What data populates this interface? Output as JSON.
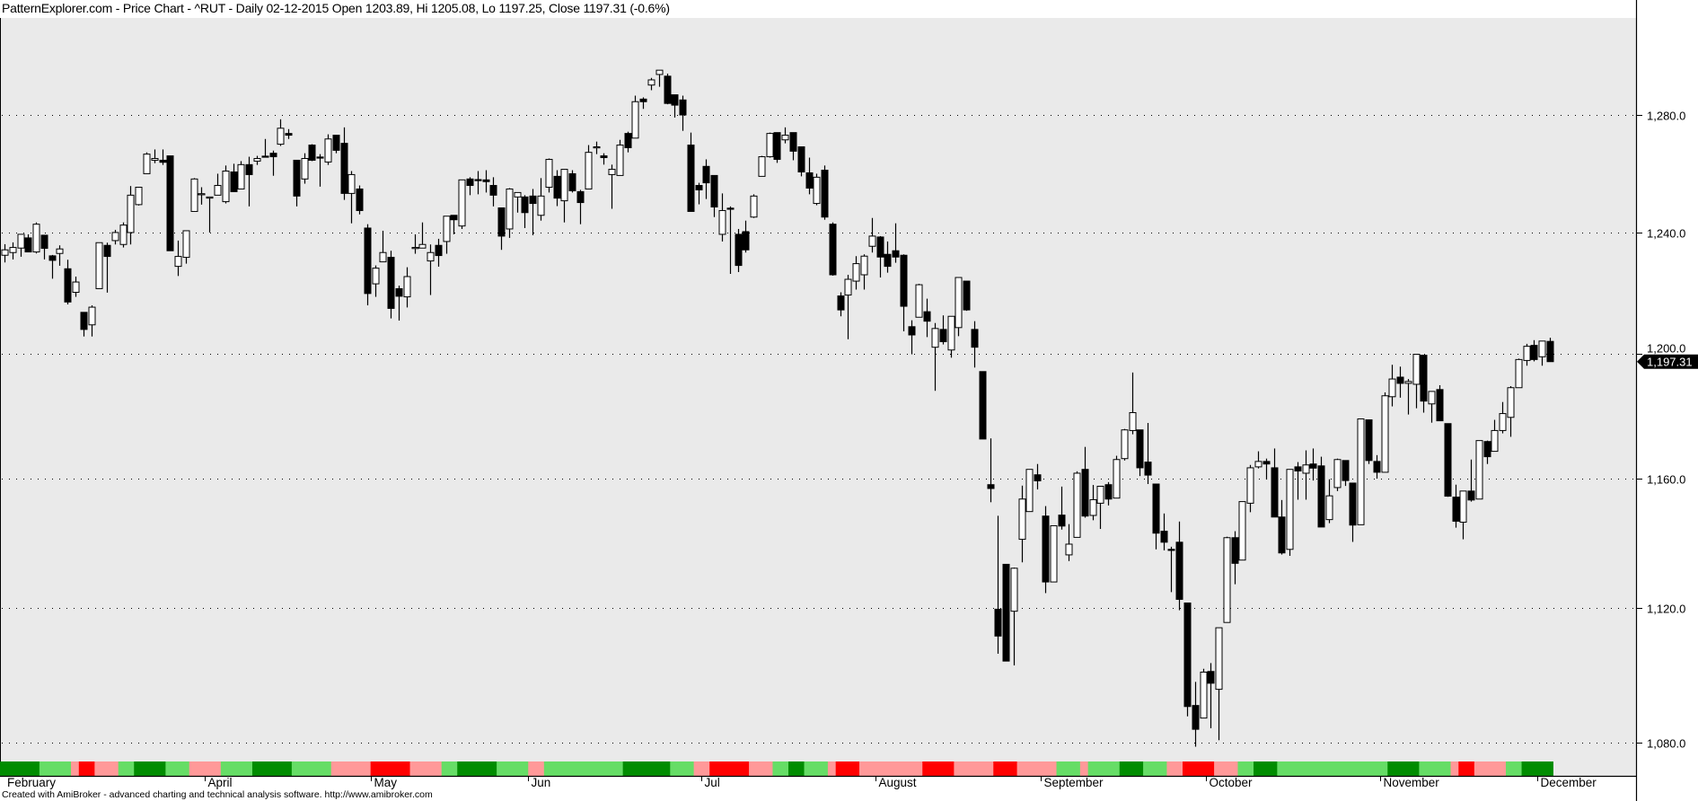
{
  "title": "PatternExplorer.com - Price Chart - ^RUT - Daily 02-12-2015 Open 1203.89, Hi 1205.08, Lo 1197.25, Close 1197.31 (-0.6%)",
  "footer": "Created with AmiBroker - advanced charting and technical analysis software. http://www.amibroker.com",
  "colors": {
    "background": "#EAEAEA",
    "up_body": "#FFFFFF",
    "down_body": "#000000",
    "band": {
      "D": "#008C00",
      "L": "#66DD66",
      "P": "#FF9999",
      "R": "#FF0000"
    }
  },
  "chart_data": {
    "type": "candlestick",
    "symbol": "^RUT",
    "interval": "Daily",
    "yscale": "log",
    "ylim": [
      1075,
      1314
    ],
    "grid": "horizontal dotted",
    "yticks": [
      1080,
      1120,
      1160,
      1200,
      1240,
      1280
    ],
    "ytick_labels": [
      "1,080.0",
      "1,120.0",
      "1,160.0",
      "1,200.0",
      "1,240.0",
      "1,280.0"
    ],
    "last_price": 1197.31,
    "last_price_label": "1,197.31",
    "months": [
      {
        "label": "February",
        "bar": 0
      },
      {
        "label": "April",
        "bar": 26
      },
      {
        "label": "May",
        "bar": 47
      },
      {
        "label": "Jun",
        "bar": 67
      },
      {
        "label": "Jul",
        "bar": 89
      },
      {
        "label": "August",
        "bar": 111
      },
      {
        "label": "September",
        "bar": 132
      },
      {
        "label": "October",
        "bar": 153
      },
      {
        "label": "November",
        "bar": 175
      },
      {
        "label": "December",
        "bar": 195
      }
    ],
    "ohlc_fields": [
      "open",
      "high",
      "low",
      "close"
    ],
    "ohlc": [
      [
        1232.3,
        1236.0,
        1229.9,
        1234.1
      ],
      [
        1233.2,
        1236.6,
        1230.9,
        1234.9
      ],
      [
        1234.7,
        1239.3,
        1231.8,
        1239.3
      ],
      [
        1238.1,
        1239.3,
        1233.4,
        1233.4
      ],
      [
        1233.4,
        1243.3,
        1232.9,
        1242.7
      ],
      [
        1239.0,
        1239.0,
        1230.9,
        1234.6
      ],
      [
        1232.1,
        1232.4,
        1224.5,
        1230.6
      ],
      [
        1232.9,
        1235.6,
        1228.8,
        1234.4
      ],
      [
        1227.8,
        1230.8,
        1216.0,
        1216.8
      ],
      [
        1220.0,
        1225.2,
        1218.5,
        1223.4
      ],
      [
        1213.4,
        1213.4,
        1205.5,
        1207.8
      ],
      [
        1209.3,
        1215.7,
        1205.5,
        1215.1
      ],
      [
        1221.2,
        1236.5,
        1221.2,
        1236.5
      ],
      [
        1235.6,
        1236.5,
        1219.9,
        1231.9
      ],
      [
        1237.2,
        1240.8,
        1235.9,
        1239.9
      ],
      [
        1235.9,
        1243.3,
        1234.9,
        1242.4
      ],
      [
        1239.9,
        1255.6,
        1235.9,
        1252.5
      ],
      [
        1249.3,
        1255.2,
        1249.0,
        1255.2
      ],
      [
        1259.8,
        1267.1,
        1259.8,
        1266.5
      ],
      [
        1264.4,
        1268.1,
        1263.4,
        1265.0
      ],
      [
        1264.4,
        1268.1,
        1262.8,
        1263.7
      ],
      [
        1265.9,
        1265.9,
        1233.8,
        1233.8
      ],
      [
        1228.6,
        1237.2,
        1225.4,
        1231.9
      ],
      [
        1231.6,
        1240.5,
        1229.5,
        1240.5
      ],
      [
        1247.0,
        1258.3,
        1247.0,
        1258.0
      ],
      [
        1253.0,
        1255.2,
        1249.3,
        1253.0
      ],
      [
        1251.5,
        1251.9,
        1239.9,
        1251.9
      ],
      [
        1252.5,
        1259.8,
        1252.5,
        1255.8
      ],
      [
        1250.3,
        1262.6,
        1249.7,
        1260.7
      ],
      [
        1260.4,
        1263.2,
        1253.7,
        1253.7
      ],
      [
        1254.6,
        1264.1,
        1254.6,
        1262.9
      ],
      [
        1262.9,
        1265.6,
        1248.7,
        1259.5
      ],
      [
        1264.1,
        1265.9,
        1262.8,
        1265.0
      ],
      [
        1265.8,
        1271.7,
        1265.6,
        1265.7
      ],
      [
        1266.8,
        1267.7,
        1259.1,
        1265.6
      ],
      [
        1269.9,
        1278.5,
        1269.3,
        1275.4
      ],
      [
        1273.6,
        1275.1,
        1271.7,
        1273.0
      ],
      [
        1264.4,
        1264.4,
        1248.7,
        1252.2
      ],
      [
        1258.0,
        1266.8,
        1256.4,
        1265.0
      ],
      [
        1269.6,
        1269.9,
        1264.1,
        1264.4
      ],
      [
        1265.5,
        1266.5,
        1255.4,
        1265.4
      ],
      [
        1263.8,
        1273.3,
        1262.8,
        1271.7
      ],
      [
        1273.0,
        1273.0,
        1266.8,
        1267.8
      ],
      [
        1270.2,
        1275.7,
        1250.9,
        1253.1
      ],
      [
        1253.1,
        1260.7,
        1243.0,
        1259.5
      ],
      [
        1254.6,
        1255.8,
        1246.0,
        1247.3
      ],
      [
        1241.4,
        1242.7,
        1215.7,
        1219.6
      ],
      [
        1222.8,
        1228.9,
        1218.5,
        1228.0
      ],
      [
        1230.1,
        1240.5,
        1230.1,
        1233.2
      ],
      [
        1231.6,
        1233.8,
        1211.4,
        1214.7
      ],
      [
        1221.2,
        1222.2,
        1210.7,
        1218.7
      ],
      [
        1218.5,
        1228.3,
        1215.0,
        1225.2
      ],
      [
        1234.9,
        1239.3,
        1232.8,
        1234.9
      ],
      [
        1234.7,
        1243.3,
        1234.7,
        1235.9
      ],
      [
        1230.4,
        1235.9,
        1219.1,
        1233.2
      ],
      [
        1235.6,
        1237.8,
        1228.5,
        1232.2
      ],
      [
        1236.9,
        1245.4,
        1232.8,
        1245.4
      ],
      [
        1245.7,
        1245.7,
        1239.3,
        1244.2
      ],
      [
        1242.1,
        1257.7,
        1241.1,
        1257.7
      ],
      [
        1258.0,
        1258.6,
        1252.5,
        1255.8
      ],
      [
        1257.8,
        1260.7,
        1252.8,
        1257.7
      ],
      [
        1257.7,
        1261.0,
        1253.4,
        1257.1
      ],
      [
        1255.8,
        1258.6,
        1248.7,
        1252.5
      ],
      [
        1248.2,
        1248.2,
        1234.1,
        1238.7
      ],
      [
        1241.1,
        1254.9,
        1238.1,
        1254.6
      ],
      [
        1251.9,
        1253.4,
        1246.6,
        1253.4
      ],
      [
        1251.9,
        1252.5,
        1241.4,
        1246.6
      ],
      [
        1252.2,
        1254.6,
        1239.0,
        1249.7
      ],
      [
        1245.7,
        1258.3,
        1243.9,
        1252.2
      ],
      [
        1255.2,
        1265.0,
        1253.4,
        1264.7
      ],
      [
        1258.9,
        1261.0,
        1248.8,
        1251.5
      ],
      [
        1250.6,
        1261.3,
        1243.3,
        1261.3
      ],
      [
        1259.8,
        1261.0,
        1253.4,
        1254.0
      ],
      [
        1253.7,
        1254.3,
        1242.7,
        1250.0
      ],
      [
        1254.6,
        1269.6,
        1254.6,
        1267.1
      ],
      [
        1269.0,
        1270.8,
        1266.5,
        1269.0
      ],
      [
        1265.9,
        1266.8,
        1262.9,
        1265.3
      ],
      [
        1259.5,
        1262.9,
        1247.9,
        1261.3
      ],
      [
        1259.2,
        1271.4,
        1259.2,
        1269.6
      ],
      [
        1273.6,
        1274.2,
        1267.1,
        1268.7
      ],
      [
        1272.0,
        1286.7,
        1272.0,
        1284.6
      ],
      [
        1285.5,
        1286.1,
        1282.1,
        1284.6
      ],
      [
        1290.4,
        1292.9,
        1288.6,
        1292.2
      ],
      [
        1294.1,
        1295.6,
        1289.8,
        1295.6
      ],
      [
        1293.5,
        1294.4,
        1283.7,
        1284.0
      ],
      [
        1287.0,
        1287.0,
        1279.1,
        1283.4
      ],
      [
        1285.2,
        1286.7,
        1274.5,
        1280.0
      ],
      [
        1269.6,
        1273.9,
        1247.0,
        1247.0
      ],
      [
        1255.8,
        1256.7,
        1249.4,
        1254.3
      ],
      [
        1262.3,
        1264.7,
        1251.2,
        1256.7
      ],
      [
        1259.2,
        1259.2,
        1245.1,
        1248.5
      ],
      [
        1239.3,
        1253.1,
        1236.9,
        1247.3
      ],
      [
        1248.1,
        1248.7,
        1226.1,
        1248.0
      ],
      [
        1239.3,
        1241.1,
        1226.7,
        1228.9
      ],
      [
        1240.2,
        1243.9,
        1233.2,
        1234.1
      ],
      [
        1245.1,
        1252.8,
        1244.8,
        1252.2
      ],
      [
        1258.9,
        1265.9,
        1258.9,
        1265.6
      ],
      [
        1265.6,
        1273.9,
        1265.3,
        1273.6
      ],
      [
        1273.9,
        1273.9,
        1263.5,
        1264.7
      ],
      [
        1271.4,
        1275.7,
        1270.2,
        1273.0
      ],
      [
        1273.9,
        1273.9,
        1264.4,
        1267.5
      ],
      [
        1269.0,
        1269.0,
        1258.9,
        1260.4
      ],
      [
        1260.1,
        1265.3,
        1252.8,
        1254.9
      ],
      [
        1249.7,
        1259.8,
        1249.1,
        1258.6
      ],
      [
        1261.0,
        1262.6,
        1244.2,
        1245.1
      ],
      [
        1242.7,
        1243.3,
        1225.5,
        1225.8
      ],
      [
        1218.8,
        1220.0,
        1212.1,
        1214.2
      ],
      [
        1219.1,
        1225.8,
        1204.6,
        1224.3
      ],
      [
        1223.7,
        1232.0,
        1220.9,
        1229.5
      ],
      [
        1225.8,
        1232.6,
        1220.9,
        1232.0
      ],
      [
        1235.3,
        1244.8,
        1233.2,
        1238.7
      ],
      [
        1238.4,
        1238.7,
        1224.9,
        1231.7
      ],
      [
        1232.6,
        1236.9,
        1226.5,
        1228.6
      ],
      [
        1233.8,
        1243.0,
        1229.8,
        1231.7
      ],
      [
        1232.3,
        1232.6,
        1207.2,
        1215.4
      ],
      [
        1208.7,
        1210.8,
        1199.7,
        1206.0
      ],
      [
        1211.8,
        1222.8,
        1211.8,
        1222.5
      ],
      [
        1213.6,
        1217.9,
        1205.3,
        1210.5
      ],
      [
        1202.0,
        1209.9,
        1187.9,
        1208.1
      ],
      [
        1207.8,
        1212.4,
        1202.9,
        1203.8
      ],
      [
        1201.1,
        1212.1,
        1198.6,
        1212.1
      ],
      [
        1208.4,
        1224.9,
        1205.6,
        1224.9
      ],
      [
        1223.7,
        1223.7,
        1213.9,
        1214.2
      ],
      [
        1207.8,
        1210.5,
        1195.4,
        1202.0
      ],
      [
        1194.1,
        1194.1,
        1172.5,
        1172.5
      ],
      [
        1158.1,
        1172.7,
        1152.6,
        1156.9
      ],
      [
        1119.7,
        1148.4,
        1106.3,
        1111.6
      ],
      [
        1133.4,
        1133.4,
        1104.1,
        1104.1
      ],
      [
        1119.1,
        1132.4,
        1102.8,
        1132.2
      ],
      [
        1141.1,
        1157.8,
        1134.0,
        1153.6
      ],
      [
        1149.7,
        1162.9,
        1149.7,
        1162.9
      ],
      [
        1161.2,
        1164.6,
        1156.6,
        1159.3
      ],
      [
        1148.3,
        1151.4,
        1124.6,
        1128.0
      ],
      [
        1128.0,
        1145.3,
        1128.0,
        1145.3
      ],
      [
        1148.6,
        1157.5,
        1144.1,
        1145.2
      ],
      [
        1136.3,
        1145.8,
        1134.4,
        1139.6
      ],
      [
        1141.7,
        1162.3,
        1141.7,
        1161.7
      ],
      [
        1162.9,
        1170.0,
        1147.8,
        1148.3
      ],
      [
        1148.5,
        1158.0,
        1147.0,
        1153.4
      ],
      [
        1152.3,
        1157.6,
        1144.3,
        1157.6
      ],
      [
        1158.1,
        1158.9,
        1151.6,
        1153.6
      ],
      [
        1153.9,
        1167.2,
        1153.9,
        1166.0
      ],
      [
        1166.3,
        1175.7,
        1165.7,
        1175.4
      ],
      [
        1175.2,
        1193.8,
        1174.0,
        1180.9
      ],
      [
        1175.4,
        1175.4,
        1160.8,
        1163.4
      ],
      [
        1165.2,
        1177.6,
        1158.3,
        1161.1
      ],
      [
        1158.3,
        1158.3,
        1138.0,
        1143.0
      ],
      [
        1143.6,
        1149.1,
        1137.7,
        1140.2
      ],
      [
        1138.0,
        1138.8,
        1124.9,
        1137.9
      ],
      [
        1140.2,
        1146.6,
        1119.4,
        1122.7
      ],
      [
        1121.6,
        1121.6,
        1087.7,
        1090.6
      ],
      [
        1090.9,
        1097.9,
        1078.8,
        1083.9
      ],
      [
        1087.2,
        1101.8,
        1087.2,
        1100.8
      ],
      [
        1101.0,
        1103.5,
        1084.2,
        1097.5
      ],
      [
        1095.7,
        1114.1,
        1080.7,
        1114.1
      ],
      [
        1115.7,
        1141.9,
        1115.7,
        1141.6
      ],
      [
        1141.6,
        1143.6,
        1127.3,
        1133.7
      ],
      [
        1134.7,
        1152.8,
        1134.7,
        1152.8
      ],
      [
        1152.3,
        1164.3,
        1149.5,
        1163.4
      ],
      [
        1163.7,
        1168.6,
        1163.2,
        1165.4
      ],
      [
        1165.4,
        1166.3,
        1159.7,
        1164.6
      ],
      [
        1163.4,
        1169.5,
        1148.0,
        1148.0
      ],
      [
        1148.0,
        1153.3,
        1136.4,
        1136.9
      ],
      [
        1138.0,
        1162.9,
        1136.0,
        1162.9
      ],
      [
        1163.7,
        1165.2,
        1153.4,
        1162.4
      ],
      [
        1161.7,
        1168.9,
        1153.4,
        1164.3
      ],
      [
        1164.6,
        1169.5,
        1159.4,
        1163.3
      ],
      [
        1164.0,
        1166.9,
        1144.9,
        1144.9
      ],
      [
        1147.2,
        1159.8,
        1146.1,
        1154.6
      ],
      [
        1157.2,
        1166.3,
        1156.1,
        1166.0
      ],
      [
        1165.7,
        1165.7,
        1157.7,
        1159.4
      ],
      [
        1158.6,
        1158.6,
        1140.3,
        1145.5
      ],
      [
        1145.6,
        1178.9,
        1145.6,
        1178.9
      ],
      [
        1178.6,
        1178.6,
        1164.6,
        1165.7
      ],
      [
        1165.4,
        1167.4,
        1160.0,
        1162.0
      ],
      [
        1162.0,
        1187.4,
        1162.0,
        1186.3
      ],
      [
        1186.0,
        1196.3,
        1182.9,
        1191.7
      ],
      [
        1192.3,
        1195.7,
        1185.7,
        1190.3
      ],
      [
        1190.3,
        1191.7,
        1180.3,
        1190.9
      ],
      [
        1190.0,
        1199.7,
        1182.3,
        1199.7
      ],
      [
        1199.4,
        1199.4,
        1180.9,
        1184.6
      ],
      [
        1183.7,
        1187.7,
        1177.7,
        1187.7
      ],
      [
        1188.3,
        1189.7,
        1178.3,
        1178.3
      ],
      [
        1177.4,
        1177.4,
        1154.3,
        1154.5
      ],
      [
        1154.2,
        1158.1,
        1144.7,
        1146.7
      ],
      [
        1146.4,
        1156.1,
        1141.1,
        1156.1
      ],
      [
        1156.1,
        1166.0,
        1152.8,
        1153.3
      ],
      [
        1153.6,
        1172.0,
        1153.6,
        1172.0
      ],
      [
        1171.7,
        1172.0,
        1164.6,
        1166.9
      ],
      [
        1168.6,
        1178.6,
        1168.6,
        1175.2
      ],
      [
        1175.2,
        1184.3,
        1174.3,
        1180.6
      ],
      [
        1179.4,
        1189.4,
        1173.2,
        1188.9
      ],
      [
        1188.9,
        1198.3,
        1188.9,
        1198.0
      ],
      [
        1197.7,
        1203.1,
        1196.0,
        1202.3
      ],
      [
        1202.6,
        1204.3,
        1197.4,
        1198.0
      ],
      [
        1198.9,
        1204.0,
        1196.0,
        1204.0
      ],
      [
        1203.89,
        1205.08,
        1197.25,
        1197.31
      ]
    ],
    "band_runs": [
      [
        "D",
        5
      ],
      [
        "L",
        4
      ],
      [
        "P",
        1
      ],
      [
        "R",
        2
      ],
      [
        "P",
        3
      ],
      [
        "L",
        2
      ],
      [
        "D",
        4
      ],
      [
        "L",
        3
      ],
      [
        "P",
        4
      ],
      [
        "L",
        4
      ],
      [
        "D",
        5
      ],
      [
        "L",
        5
      ],
      [
        "P",
        5
      ],
      [
        "R",
        5
      ],
      [
        "P",
        4
      ],
      [
        "L",
        2
      ],
      [
        "D",
        5
      ],
      [
        "L",
        4
      ],
      [
        "P",
        2
      ],
      [
        "L",
        10
      ],
      [
        "D",
        6
      ],
      [
        "L",
        3
      ],
      [
        "P",
        2
      ],
      [
        "R",
        5
      ],
      [
        "P",
        3
      ],
      [
        "L",
        2
      ],
      [
        "D",
        2
      ],
      [
        "L",
        3
      ],
      [
        "P",
        1
      ],
      [
        "R",
        3
      ],
      [
        "P",
        8
      ],
      [
        "R",
        4
      ],
      [
        "P",
        5
      ],
      [
        "R",
        3
      ],
      [
        "P",
        5
      ],
      [
        "L",
        3
      ],
      [
        "P",
        1
      ],
      [
        "L",
        4
      ],
      [
        "D",
        3
      ],
      [
        "L",
        3
      ],
      [
        "P",
        2
      ],
      [
        "R",
        4
      ],
      [
        "P",
        3
      ],
      [
        "L",
        2
      ],
      [
        "D",
        3
      ],
      [
        "L",
        14
      ],
      [
        "D",
        4
      ],
      [
        "L",
        4
      ],
      [
        "P",
        1
      ],
      [
        "R",
        2
      ],
      [
        "P",
        4
      ],
      [
        "L",
        2
      ],
      [
        "D",
        4
      ]
    ]
  }
}
